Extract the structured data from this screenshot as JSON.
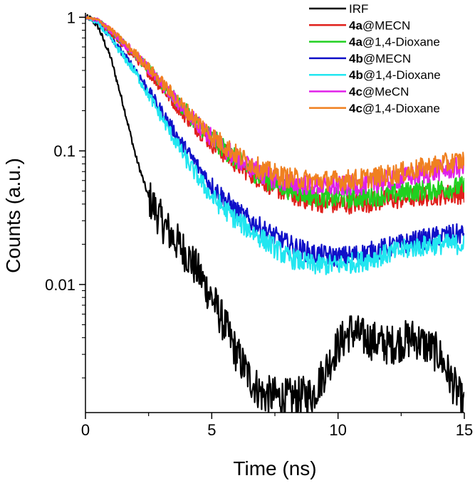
{
  "chart_data": {
    "type": "line",
    "title": "",
    "xlabel": "Time (ns)",
    "ylabel": "Counts (a.u.)",
    "xscale": "linear",
    "yscale": "log",
    "xlim": [
      0,
      15
    ],
    "ylim": [
      0.0011,
      1.08
    ],
    "x_ticks": [
      0,
      5,
      10,
      15
    ],
    "x_tick_labels": [
      "0",
      "5",
      "10",
      "15"
    ],
    "y_ticks": [
      0.01,
      0.1,
      1
    ],
    "y_tick_labels": [
      "0.01",
      "0.1",
      "1"
    ],
    "legend_position": "top-right",
    "series": [
      {
        "name": "IRF",
        "label_bold": "",
        "label_rest": "IRF",
        "color": "#000000",
        "x": [
          0,
          0.2,
          0.5,
          1.0,
          1.5,
          2.0,
          2.5,
          3.0,
          3.5,
          4.0,
          4.5,
          5.0,
          5.5,
          6.0,
          6.5,
          7.0,
          8.0,
          9.0,
          10.0,
          10.5,
          11.0,
          12.0,
          13.0,
          14.0,
          15.0
        ],
        "y": [
          1.0,
          0.98,
          0.85,
          0.5,
          0.22,
          0.09,
          0.045,
          0.03,
          0.022,
          0.017,
          0.012,
          0.008,
          0.005,
          0.003,
          0.002,
          0.0015,
          0.0014,
          0.0015,
          0.0035,
          0.0045,
          0.004,
          0.0035,
          0.004,
          0.003,
          0.0012
        ]
      },
      {
        "name": "4a@MECN",
        "label_bold": "4a",
        "label_rest": "@MECN",
        "color": "#e0201b",
        "x": [
          0,
          0.5,
          1,
          2,
          3,
          4,
          5,
          6,
          7,
          8,
          9,
          10,
          11,
          12,
          13,
          14,
          15
        ],
        "y": [
          1.0,
          0.92,
          0.75,
          0.5,
          0.3,
          0.18,
          0.115,
          0.08,
          0.06,
          0.048,
          0.042,
          0.04,
          0.041,
          0.043,
          0.045,
          0.047,
          0.048
        ]
      },
      {
        "name": "4a@1,4-Dioxane",
        "label_bold": "4a",
        "label_rest": "@1,4-Dioxane",
        "color": "#20d020",
        "x": [
          0,
          0.5,
          1,
          2,
          3,
          4,
          5,
          6,
          7,
          8,
          9,
          10,
          11,
          12,
          13,
          14,
          15
        ],
        "y": [
          1.0,
          0.95,
          0.8,
          0.52,
          0.32,
          0.195,
          0.125,
          0.085,
          0.063,
          0.052,
          0.046,
          0.044,
          0.045,
          0.047,
          0.05,
          0.052,
          0.054
        ]
      },
      {
        "name": "4b@MECN",
        "label_bold": "4b",
        "label_rest": "@MECN",
        "color": "#1010c8",
        "x": [
          0,
          0.5,
          1,
          2,
          3,
          4,
          5,
          6,
          7,
          8,
          9,
          10,
          11,
          12,
          13,
          14,
          15
        ],
        "y": [
          1.0,
          0.9,
          0.7,
          0.4,
          0.2,
          0.1,
          0.055,
          0.035,
          0.026,
          0.02,
          0.017,
          0.016,
          0.017,
          0.019,
          0.021,
          0.023,
          0.024
        ]
      },
      {
        "name": "4b@1,4-Dioxane",
        "label_bold": "4b",
        "label_rest": "@1,4-Dioxane",
        "color": "#22e6f0",
        "x": [
          0,
          0.5,
          1,
          2,
          3,
          4,
          5,
          6,
          7,
          8,
          9,
          10,
          11,
          12,
          13,
          14,
          15
        ],
        "y": [
          1.0,
          0.9,
          0.69,
          0.38,
          0.18,
          0.085,
          0.045,
          0.03,
          0.022,
          0.016,
          0.014,
          0.014,
          0.015,
          0.017,
          0.019,
          0.02,
          0.02
        ]
      },
      {
        "name": "4c@MeCN",
        "label_bold": "4c",
        "label_rest": "@MeCN",
        "color": "#e020e8",
        "x": [
          0,
          0.5,
          1,
          2,
          3,
          4,
          5,
          6,
          7,
          8,
          9,
          10,
          11,
          12,
          13,
          14,
          15
        ],
        "y": [
          1.0,
          0.95,
          0.8,
          0.52,
          0.32,
          0.195,
          0.125,
          0.088,
          0.067,
          0.058,
          0.055,
          0.054,
          0.056,
          0.06,
          0.065,
          0.071,
          0.076
        ]
      },
      {
        "name": "4c@1,4-Dioxane",
        "label_bold": "4c",
        "label_rest": "@1,4-Dioxane",
        "color": "#f08020",
        "x": [
          0,
          0.5,
          1,
          2,
          3,
          4,
          5,
          6,
          7,
          8,
          9,
          10,
          11,
          12,
          13,
          14,
          15
        ],
        "y": [
          1.0,
          0.95,
          0.81,
          0.53,
          0.33,
          0.2,
          0.13,
          0.093,
          0.072,
          0.063,
          0.06,
          0.06,
          0.062,
          0.066,
          0.072,
          0.079,
          0.085
        ]
      }
    ]
  }
}
